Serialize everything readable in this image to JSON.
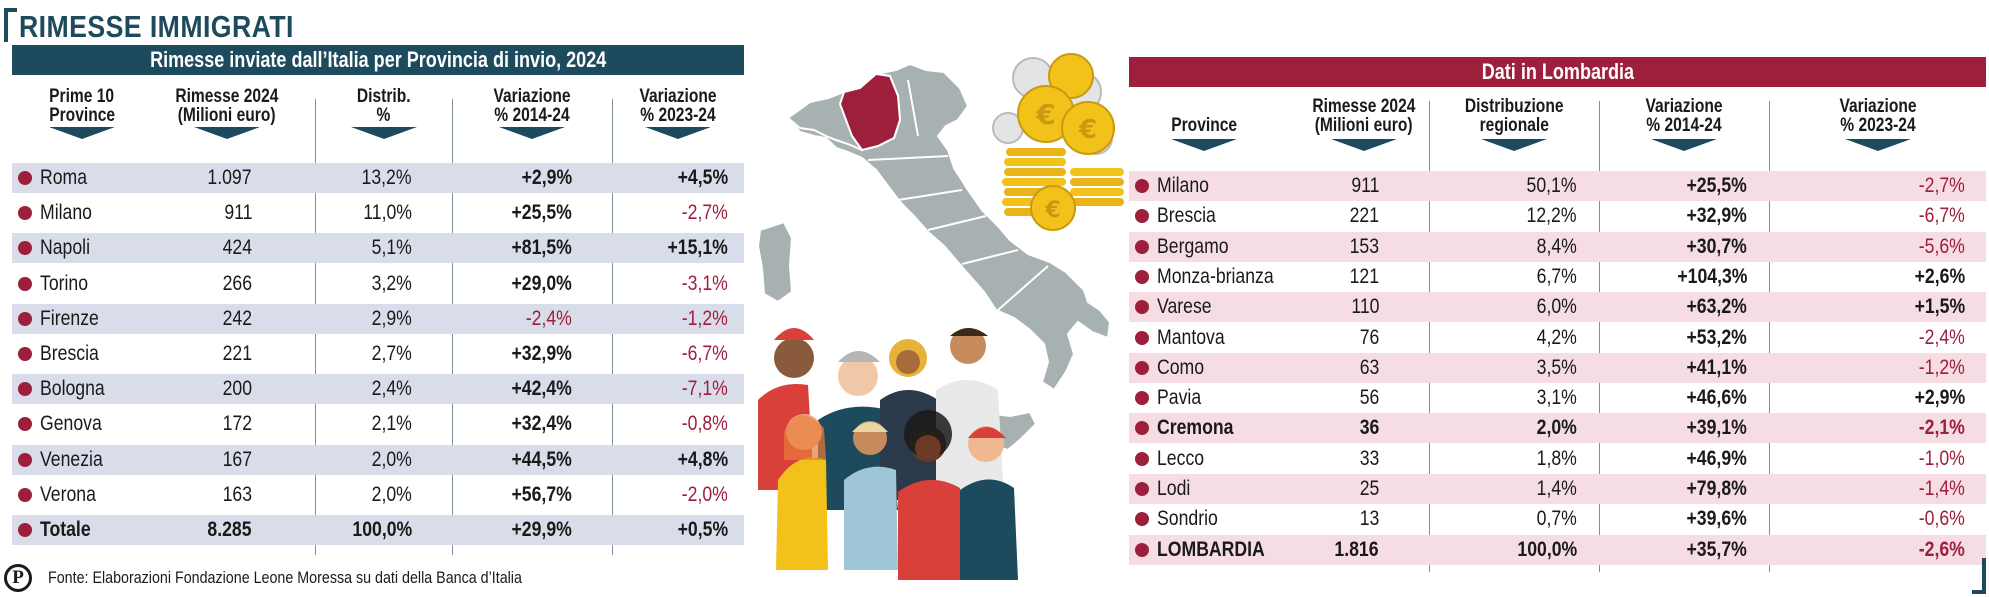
{
  "headline": "RIMESSE IMMIGRATI",
  "colors": {
    "blue": "#1d4a5c",
    "red": "#9e1f3c",
    "map_gray": "#a8b1b2",
    "lombardy": "#9e1f3c",
    "gold": "#f2c21b"
  },
  "illustration": {
    "icons": [
      "italy-map-icon",
      "coin-stack-icon",
      "people-group-icon"
    ]
  },
  "left_table": {
    "title": "Rimesse inviate dall’Italia per Provincia di invio, 2024",
    "headers": [
      {
        "line1": "Prime 10",
        "line2": "Province"
      },
      {
        "line1": "Rimesse 2024",
        "line2": "(Milioni euro)"
      },
      {
        "line1": "Distrib.",
        "line2": "%"
      },
      {
        "line1": "Variazione",
        "line2": "% 2014-24"
      },
      {
        "line1": "Variazione",
        "line2": "% 2023-24"
      }
    ],
    "rows": [
      {
        "name": "Roma",
        "rimesse": "1.097",
        "distrib": "13,2%",
        "var1424": "+2,9%",
        "var2324": "+4,5%"
      },
      {
        "name": "Milano",
        "rimesse": "911",
        "distrib": "11,0%",
        "var1424": "+25,5%",
        "var2324": "-2,7%"
      },
      {
        "name": "Napoli",
        "rimesse": "424",
        "distrib": "5,1%",
        "var1424": "+81,5%",
        "var2324": "+15,1%"
      },
      {
        "name": "Torino",
        "rimesse": "266",
        "distrib": "3,2%",
        "var1424": "+29,0%",
        "var2324": "-3,1%"
      },
      {
        "name": "Firenze",
        "rimesse": "242",
        "distrib": "2,9%",
        "var1424": "-2,4%",
        "var2324": "-1,2%"
      },
      {
        "name": "Brescia",
        "rimesse": "221",
        "distrib": "2,7%",
        "var1424": "+32,9%",
        "var2324": "-6,7%"
      },
      {
        "name": "Bologna",
        "rimesse": "200",
        "distrib": "2,4%",
        "var1424": "+42,4%",
        "var2324": "-7,1%"
      },
      {
        "name": "Genova",
        "rimesse": "172",
        "distrib": "2,1%",
        "var1424": "+32,4%",
        "var2324": "-0,8%"
      },
      {
        "name": "Venezia",
        "rimesse": "167",
        "distrib": "2,0%",
        "var1424": "+44,5%",
        "var2324": "+4,8%"
      },
      {
        "name": "Verona",
        "rimesse": "163",
        "distrib": "2,0%",
        "var1424": "+56,7%",
        "var2324": "-2,0%"
      },
      {
        "name": "Totale",
        "rimesse": "8.285",
        "distrib": "100,0%",
        "var1424": "+29,9%",
        "var2324": "+0,5%",
        "bold": true
      }
    ]
  },
  "right_table": {
    "title": "Dati in Lombardia",
    "headers": [
      {
        "line1": "",
        "line2": "Province"
      },
      {
        "line1": "Rimesse 2024",
        "line2": "(Milioni euro)"
      },
      {
        "line1": "Distribuzione",
        "line2": "regionale"
      },
      {
        "line1": "Variazione",
        "line2": "% 2014-24"
      },
      {
        "line1": "Variazione",
        "line2": "% 2023-24"
      }
    ],
    "rows": [
      {
        "name": "Milano",
        "rimesse": "911",
        "distrib": "50,1%",
        "var1424": "+25,5%",
        "var2324": "-2,7%"
      },
      {
        "name": "Brescia",
        "rimesse": "221",
        "distrib": "12,2%",
        "var1424": "+32,9%",
        "var2324": "-6,7%"
      },
      {
        "name": "Bergamo",
        "rimesse": "153",
        "distrib": "8,4%",
        "var1424": "+30,7%",
        "var2324": "-5,6%"
      },
      {
        "name": "Monza-brianza",
        "rimesse": "121",
        "distrib": "6,7%",
        "var1424": "+104,3%",
        "var2324": "+2,6%"
      },
      {
        "name": "Varese",
        "rimesse": "110",
        "distrib": "6,0%",
        "var1424": "+63,2%",
        "var2324": "+1,5%"
      },
      {
        "name": "Mantova",
        "rimesse": "76",
        "distrib": "4,2%",
        "var1424": "+53,2%",
        "var2324": "-2,4%"
      },
      {
        "name": "Como",
        "rimesse": "63",
        "distrib": "3,5%",
        "var1424": "+41,1%",
        "var2324": "-1,2%"
      },
      {
        "name": "Pavia",
        "rimesse": "56",
        "distrib": "3,1%",
        "var1424": "+46,6%",
        "var2324": "+2,9%"
      },
      {
        "name": "Cremona",
        "rimesse": "36",
        "distrib": "2,0%",
        "var1424": "+39,1%",
        "var2324": "-2,1%",
        "bold": true
      },
      {
        "name": "Lecco",
        "rimesse": "33",
        "distrib": "1,8%",
        "var1424": "+46,9%",
        "var2324": "-1,0%"
      },
      {
        "name": "Lodi",
        "rimesse": "25",
        "distrib": "1,4%",
        "var1424": "+79,8%",
        "var2324": "-1,4%"
      },
      {
        "name": "Sondrio",
        "rimesse": "13",
        "distrib": "0,7%",
        "var1424": "+39,6%",
        "var2324": "-0,6%"
      },
      {
        "name": "LOMBARDIA",
        "rimesse": "1.816",
        "distrib": "100,0%",
        "var1424": "+35,7%",
        "var2324": "-2,6%",
        "bold": true
      }
    ]
  },
  "footnote": {
    "logo": "P",
    "text": "Fonte: Elaborazioni Fondazione Leone Moressa su dati della Banca d’Italia"
  },
  "chart_data": [
    {
      "type": "table",
      "title": "Rimesse inviate dall’Italia per Provincia di invio, 2024",
      "columns": [
        "Prime 10 Province",
        "Rimesse 2024 (Milioni euro)",
        "Distrib. %",
        "Variazione % 2014-24",
        "Variazione % 2023-24"
      ],
      "rows": [
        [
          "Roma",
          1097,
          13.2,
          2.9,
          4.5
        ],
        [
          "Milano",
          911,
          11.0,
          25.5,
          -2.7
        ],
        [
          "Napoli",
          424,
          5.1,
          81.5,
          15.1
        ],
        [
          "Torino",
          266,
          3.2,
          29.0,
          -3.1
        ],
        [
          "Firenze",
          242,
          2.9,
          -2.4,
          -1.2
        ],
        [
          "Brescia",
          221,
          2.7,
          32.9,
          -6.7
        ],
        [
          "Bologna",
          200,
          2.4,
          42.4,
          -7.1
        ],
        [
          "Genova",
          172,
          2.1,
          32.4,
          -0.8
        ],
        [
          "Venezia",
          167,
          2.0,
          44.5,
          4.8
        ],
        [
          "Verona",
          163,
          2.0,
          56.7,
          -2.0
        ],
        [
          "Totale",
          8285,
          100.0,
          29.9,
          0.5
        ]
      ]
    },
    {
      "type": "table",
      "title": "Dati in Lombardia",
      "columns": [
        "Province",
        "Rimesse 2024 (Milioni euro)",
        "Distribuzione regionale",
        "Variazione % 2014-24",
        "Variazione % 2023-24"
      ],
      "rows": [
        [
          "Milano",
          911,
          50.1,
          25.5,
          -2.7
        ],
        [
          "Brescia",
          221,
          12.2,
          32.9,
          -6.7
        ],
        [
          "Bergamo",
          153,
          8.4,
          30.7,
          -5.6
        ],
        [
          "Monza-brianza",
          121,
          6.7,
          104.3,
          2.6
        ],
        [
          "Varese",
          110,
          6.0,
          63.2,
          1.5
        ],
        [
          "Mantova",
          76,
          4.2,
          53.2,
          -2.4
        ],
        [
          "Como",
          63,
          3.5,
          41.1,
          -1.2
        ],
        [
          "Pavia",
          56,
          3.1,
          46.6,
          2.9
        ],
        [
          "Cremona",
          36,
          2.0,
          39.1,
          -2.1
        ],
        [
          "Lecco",
          33,
          1.8,
          46.9,
          -1.0
        ],
        [
          "Lodi",
          25,
          1.4,
          79.8,
          -1.4
        ],
        [
          "Sondrio",
          13,
          0.7,
          39.6,
          -0.6
        ],
        [
          "LOMBARDIA",
          1816,
          100.0,
          35.7,
          -2.6
        ]
      ]
    }
  ]
}
